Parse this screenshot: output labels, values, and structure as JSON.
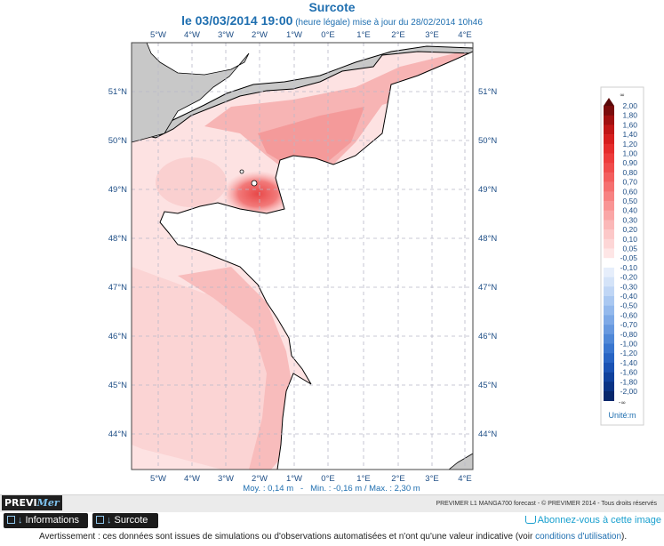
{
  "header": {
    "title": "Surcote",
    "date": "le 03/03/2014 19:00",
    "detail": " (heure légale) mise à jour du 28/02/2014 10h46"
  },
  "map": {
    "lon_labels": [
      "5°W",
      "4°W",
      "3°W",
      "2°W",
      "1°W",
      "0°E",
      "1°E",
      "2°E",
      "3°E",
      "4°E"
    ],
    "lat_labels": [
      "51°N",
      "50°N",
      "49°N",
      "48°N",
      "47°N",
      "46°N",
      "45°N",
      "44°N"
    ],
    "stats": "Moy. : 0,14 m   -   Min. : -0,16 m / Max. : 2,30 m",
    "colors": {
      "land": "#c8c8c8",
      "sea_light": "#fde0e0",
      "sea_mid": "#f8b3b3",
      "sea_high": "#ec6262"
    }
  },
  "legend": {
    "top_symbol": "∞",
    "bottom_symbol": "-∞",
    "values": [
      "2,00",
      "1,80",
      "1,60",
      "1,40",
      "1,20",
      "1,00",
      "0,90",
      "0,80",
      "0,70",
      "0,60",
      "0,50",
      "0,40",
      "0,30",
      "0,20",
      "0,10",
      "0,05",
      "-0,05",
      "-0,10",
      "-0,20",
      "-0,30",
      "-0,40",
      "-0,50",
      "-0,60",
      "-0,70",
      "-0,80",
      "-1,00",
      "-1,20",
      "-1,40",
      "-1,60",
      "-1,80",
      "-2,00"
    ],
    "unit": "Unité:m",
    "colors": [
      "#7a0c0c",
      "#a01010",
      "#c01616",
      "#d61e1e",
      "#e52c2c",
      "#ed3c3c",
      "#f04c4c",
      "#f35e5e",
      "#f57070",
      "#f78282",
      "#f99494",
      "#faa6a6",
      "#fbb8b8",
      "#fcc8c8",
      "#fdd6d6",
      "#fee6e6",
      "#ffffff",
      "#e6eefb",
      "#d4e3f8",
      "#c0d6f5",
      "#aac8f1",
      "#94b9ec",
      "#7ea9e6",
      "#6899df",
      "#5088d7",
      "#3a76cf",
      "#2864c3",
      "#1a52b3",
      "#10419c",
      "#0a3384",
      "#08286c"
    ]
  },
  "footer": {
    "logo_prefix": "PREVI",
    "logo_suffix": "Mer",
    "credit": "PREVIMER L1 MANGA700 forecast - © PREVIMER 2014 - Tous droits réservés",
    "tab_info": "Informations",
    "tab_surcote": "Surcote",
    "subscribe": "Abonnez-vous à cette image",
    "warning_prefix": "Avertissement : ces données sont issues de simulations ou d'observations automatisées et n'ont qu'une valeur indicative (voir ",
    "warning_link": "conditions d'utilisation",
    "warning_suffix": ")."
  }
}
